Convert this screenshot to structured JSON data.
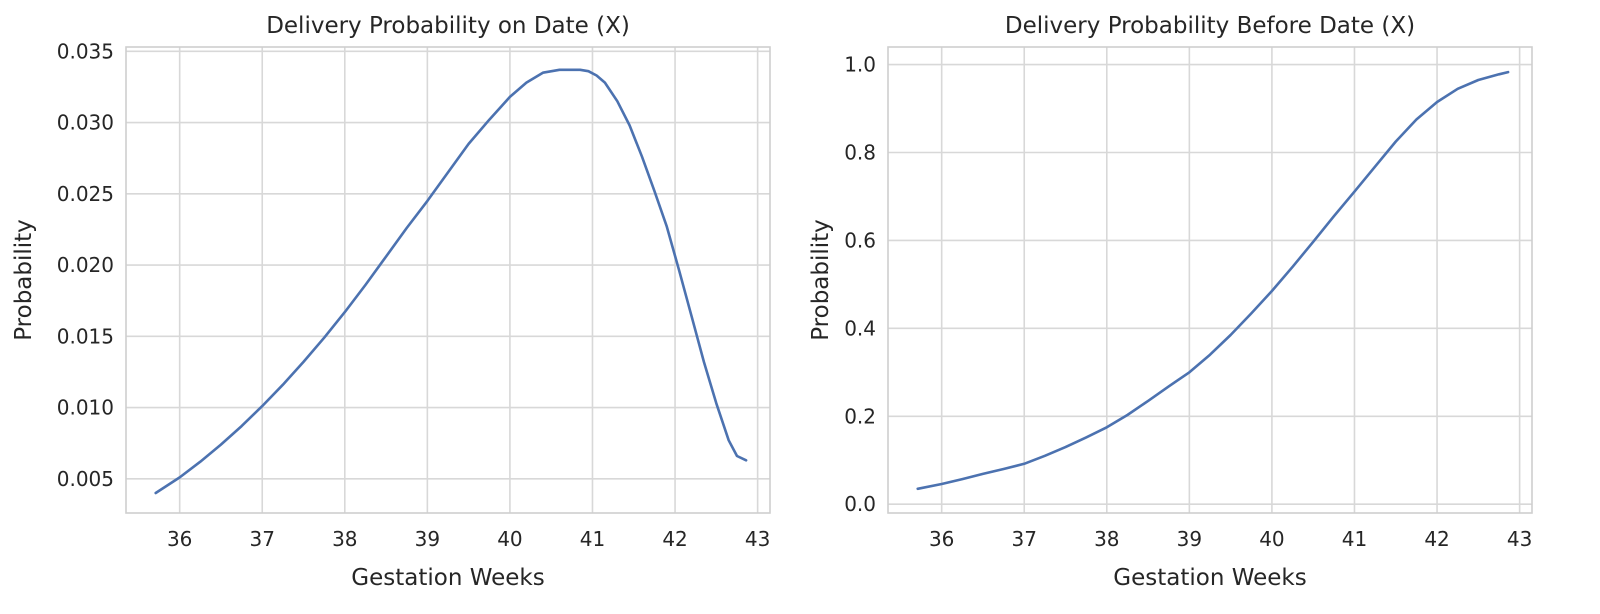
{
  "chart_data": [
    {
      "type": "line",
      "title": "Delivery Probability on Date (X)",
      "xlabel": "Gestation Weeks",
      "ylabel": "Probability",
      "xlim": [
        35.35,
        43.15
      ],
      "ylim": [
        0.0026,
        0.0353
      ],
      "xticks": [
        "36",
        "37",
        "38",
        "39",
        "40",
        "41",
        "42",
        "43"
      ],
      "yticks": [
        "0.005",
        "0.010",
        "0.015",
        "0.020",
        "0.025",
        "0.030",
        "0.035"
      ],
      "grid": true,
      "series": [
        {
          "color": "#4c72b0",
          "x": [
            35.71,
            36.0,
            36.25,
            36.5,
            36.75,
            37.0,
            37.25,
            37.5,
            37.75,
            38.0,
            38.25,
            38.5,
            38.75,
            39.0,
            39.25,
            39.5,
            39.75,
            40.0,
            40.2,
            40.4,
            40.6,
            40.75,
            40.85,
            40.95,
            41.05,
            41.15,
            41.3,
            41.45,
            41.6,
            41.75,
            41.9,
            42.05,
            42.2,
            42.35,
            42.5,
            42.65,
            42.75,
            42.86
          ],
          "y": [
            0.004,
            0.0051,
            0.0062,
            0.0074,
            0.0087,
            0.0101,
            0.0116,
            0.0132,
            0.0149,
            0.0167,
            0.0186,
            0.0206,
            0.0226,
            0.0245,
            0.0265,
            0.0285,
            0.0302,
            0.0318,
            0.0328,
            0.0335,
            0.0337,
            0.0337,
            0.0337,
            0.0336,
            0.0333,
            0.0328,
            0.0315,
            0.0298,
            0.0276,
            0.0252,
            0.0227,
            0.0196,
            0.0164,
            0.0132,
            0.0103,
            0.0077,
            0.0066,
            0.0063
          ]
        }
      ]
    },
    {
      "type": "line",
      "title": "Delivery Probability Before Date (X)",
      "xlabel": "Gestation Weeks",
      "ylabel": "Probability",
      "xlim": [
        35.35,
        43.15
      ],
      "ylim": [
        -0.02,
        1.04
      ],
      "xticks": [
        "36",
        "37",
        "38",
        "39",
        "40",
        "41",
        "42",
        "43"
      ],
      "yticks": [
        "0.0",
        "0.2",
        "0.4",
        "0.6",
        "0.8",
        "1.0"
      ],
      "grid": true,
      "series": [
        {
          "color": "#4c72b0",
          "x": [
            35.71,
            36.0,
            36.25,
            36.5,
            36.75,
            37.0,
            37.25,
            37.5,
            37.75,
            38.0,
            38.25,
            38.5,
            38.75,
            39.0,
            39.25,
            39.5,
            39.75,
            40.0,
            40.25,
            40.5,
            40.75,
            41.0,
            41.25,
            41.5,
            41.75,
            42.0,
            42.25,
            42.5,
            42.75,
            42.86
          ],
          "y": [
            0.035,
            0.046,
            0.057,
            0.069,
            0.08,
            0.092,
            0.11,
            0.13,
            0.152,
            0.175,
            0.203,
            0.235,
            0.268,
            0.3,
            0.34,
            0.385,
            0.434,
            0.485,
            0.54,
            0.597,
            0.655,
            0.711,
            0.768,
            0.825,
            0.875,
            0.915,
            0.945,
            0.965,
            0.978,
            0.983
          ]
        }
      ]
    }
  ]
}
